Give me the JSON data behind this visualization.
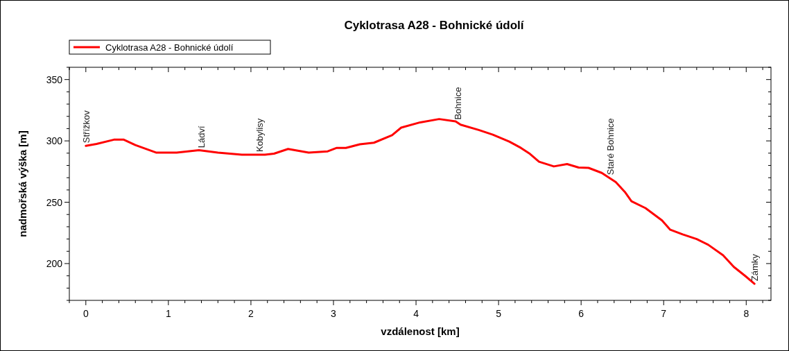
{
  "chart_data": {
    "type": "line",
    "title": "Cyklotrasa A28 - Bohnické údolí",
    "xlabel": "vzdálenost [km]",
    "ylabel": "nadmořská výška [m]",
    "x": [
      0,
      0.13,
      0.34,
      0.46,
      0.6,
      0.85,
      1.1,
      1.37,
      1.6,
      1.89,
      2.17,
      2.28,
      2.45,
      2.7,
      2.93,
      3.04,
      3.15,
      3.32,
      3.49,
      3.71,
      3.82,
      4.05,
      4.28,
      4.48,
      4.54,
      4.76,
      4.93,
      5.13,
      5.27,
      5.38,
      5.49,
      5.67,
      5.83,
      5.97,
      6.09,
      6.25,
      6.42,
      6.53,
      6.61,
      6.78,
      6.98,
      7.08,
      7.23,
      7.4,
      7.54,
      7.72,
      7.85,
      7.99,
      8.1
    ],
    "series": [
      {
        "name": "Cyklotrasa A28 - Bohnické údolí",
        "color": "#ff0000",
        "values": [
          296,
          297.5,
          301,
          301,
          296.6,
          290.5,
          290.5,
          292.4,
          290.5,
          288.7,
          288.7,
          289.6,
          293.4,
          290.4,
          291.5,
          294.3,
          294.3,
          297.2,
          298.5,
          304.7,
          310.8,
          315.1,
          317.8,
          315.9,
          313.2,
          308.9,
          305.1,
          299.4,
          294.3,
          289.4,
          283,
          279.2,
          281.1,
          278.3,
          278,
          273.9,
          266.4,
          258.4,
          250.8,
          245.2,
          235.2,
          227.6,
          223.8,
          220,
          215.3,
          206.8,
          197.3,
          189.8,
          183.5
        ]
      }
    ],
    "annotations": [
      {
        "text": "Střížkov",
        "x": 0,
        "y": 296
      },
      {
        "text": "Ládví",
        "x": 1.4,
        "y": 292
      },
      {
        "text": "Kobylisy",
        "x": 2.1,
        "y": 288.7
      },
      {
        "text": "Bohnice",
        "x": 4.5,
        "y": 315
      },
      {
        "text": "Staré Bohnice",
        "x": 6.35,
        "y": 270
      },
      {
        "text": "Zámky",
        "x": 8.1,
        "y": 183.5
      }
    ],
    "xlim": [
      -0.2,
      8.3
    ],
    "ylim": [
      170,
      360
    ],
    "xticks": [
      {
        "value": -0.2,
        "label": null
      },
      0,
      {
        "value": 0.2,
        "label": null
      },
      {
        "value": 0.4,
        "label": null
      },
      {
        "value": 0.6,
        "label": null
      },
      {
        "value": 0.8,
        "label": null
      },
      1,
      {
        "value": 1.2,
        "label": null
      },
      {
        "value": 1.4,
        "label": null
      },
      {
        "value": 1.6,
        "label": null
      },
      {
        "value": 1.8,
        "label": null
      },
      2,
      {
        "value": 2.2,
        "label": null
      },
      {
        "value": 2.4,
        "label": null
      },
      {
        "value": 2.6,
        "label": null
      },
      {
        "value": 2.8,
        "label": null
      },
      3,
      {
        "value": 3.2,
        "label": null
      },
      {
        "value": 3.4,
        "label": null
      },
      {
        "value": 3.6,
        "label": null
      },
      {
        "value": 3.8,
        "label": null
      },
      4,
      {
        "value": 4.2,
        "label": null
      },
      {
        "value": 4.4,
        "label": null
      },
      {
        "value": 4.6,
        "label": null
      },
      {
        "value": 4.8,
        "label": null
      },
      5,
      {
        "value": 5.2,
        "label": null
      },
      {
        "value": 5.4,
        "label": null
      },
      {
        "value": 5.6,
        "label": null
      },
      {
        "value": 5.8,
        "label": null
      },
      6,
      {
        "value": 6.2,
        "label": null
      },
      {
        "value": 6.4,
        "label": null
      },
      {
        "value": 6.6,
        "label": null
      },
      {
        "value": 6.8,
        "label": null
      },
      7,
      {
        "value": 7.2,
        "label": null
      },
      {
        "value": 7.4,
        "label": null
      },
      {
        "value": 7.6,
        "label": null
      },
      {
        "value": 7.8,
        "label": null
      },
      8,
      {
        "value": 8.2,
        "label": null
      }
    ],
    "yticks": [
      {
        "value": 170,
        "label": null
      },
      {
        "value": 180,
        "label": null
      },
      {
        "value": 190,
        "label": null
      },
      200,
      {
        "value": 210,
        "label": null
      },
      {
        "value": 220,
        "label": null
      },
      {
        "value": 230,
        "label": null
      },
      {
        "value": 240,
        "label": null
      },
      250,
      {
        "value": 260,
        "label": null
      },
      {
        "value": 270,
        "label": null
      },
      {
        "value": 280,
        "label": null
      },
      {
        "value": 290,
        "label": null
      },
      300,
      {
        "value": 310,
        "label": null
      },
      {
        "value": 320,
        "label": null
      },
      {
        "value": 330,
        "label": null
      },
      {
        "value": 340,
        "label": null
      },
      350,
      {
        "value": 360,
        "label": null
      }
    ],
    "legend": "top left",
    "marker": "none",
    "line_style": "solid"
  }
}
